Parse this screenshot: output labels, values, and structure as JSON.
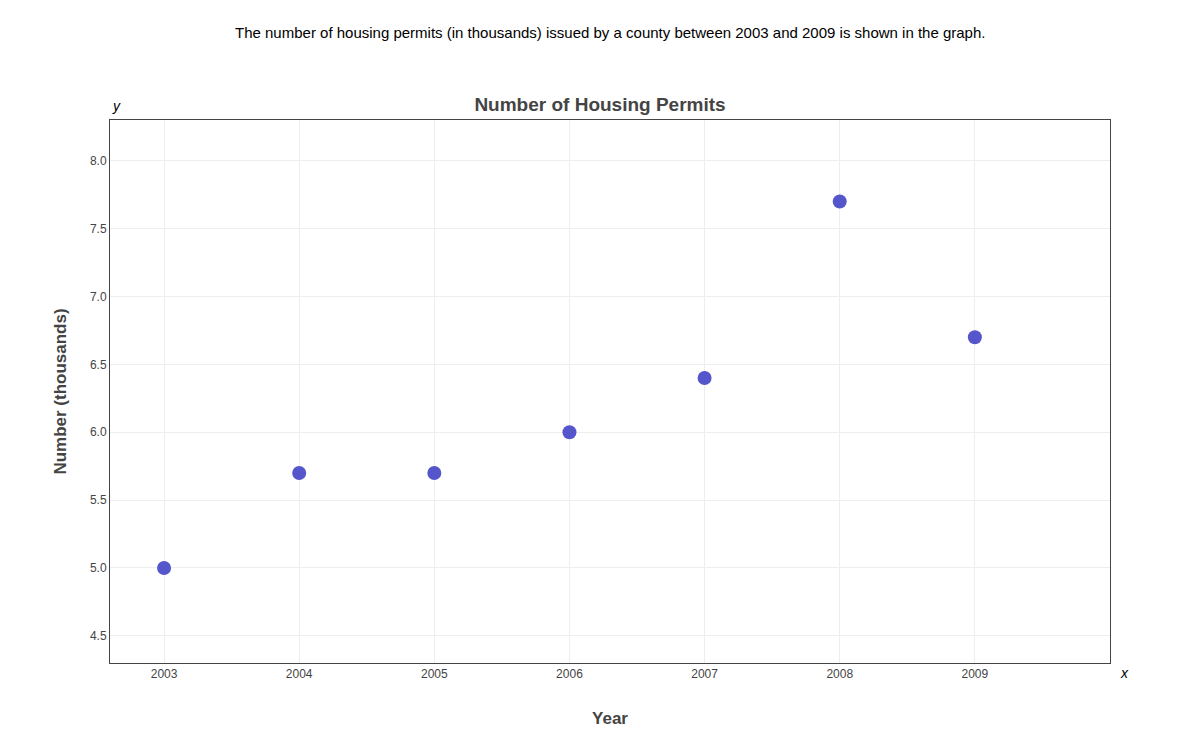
{
  "chart_data": {
    "type": "scatter",
    "title": "Number of Housing Permits",
    "subtitle": "The number of housing permits (in thousands) issued by a county between 2003 and 2009 is shown in the graph.",
    "xlabel": "Year",
    "ylabel": "Number (thousands)",
    "x": [
      2003,
      2004,
      2005,
      2006,
      2007,
      2008,
      2009
    ],
    "values": [
      5.0,
      5.7,
      5.7,
      6.0,
      6.4,
      7.7,
      6.7
    ],
    "color": "#5555cc",
    "xlim": [
      2002.6,
      2010.0
    ],
    "ylim": [
      4.3,
      8.3
    ],
    "xticks": [
      2003,
      2004,
      2005,
      2006,
      2007,
      2008,
      2009
    ],
    "yticks": [
      4.5,
      {
        "value": 5.0,
        "label": "5.0"
      },
      5.5,
      {
        "value": 6.0,
        "label": "6.0"
      },
      6.5,
      {
        "value": 7.0,
        "label": "7.0"
      },
      7.5,
      {
        "value": 8.0,
        "label": "8.0"
      }
    ],
    "grid": true,
    "annotations": [
      {
        "text": "y",
        "axis": "y"
      },
      {
        "text": "x",
        "axis": "x"
      }
    ]
  }
}
